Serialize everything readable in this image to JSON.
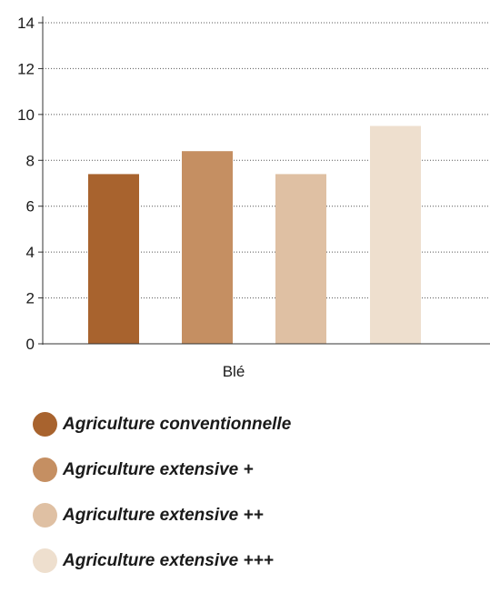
{
  "chart_data": {
    "type": "bar",
    "categories": [
      "Blé"
    ],
    "series": [
      {
        "name": "Agriculture conventionnelle",
        "values": [
          7.4
        ],
        "color": "#a8632e"
      },
      {
        "name": "Agriculture extensive +",
        "values": [
          8.4
        ],
        "color": "#c58f62"
      },
      {
        "name": "Agriculture extensive ++",
        "values": [
          7.4
        ],
        "color": "#dfc0a3"
      },
      {
        "name": "Agriculture extensive +++",
        "values": [
          9.5
        ],
        "color": "#eedfce"
      }
    ],
    "title": "",
    "xlabel": "",
    "ylabel": "",
    "ylim": [
      0,
      14
    ],
    "yticks": [
      "0",
      "2",
      "4",
      "6",
      "8",
      "10",
      "12",
      "14"
    ],
    "grid": "horizontal dotted",
    "legend": "bottom"
  }
}
